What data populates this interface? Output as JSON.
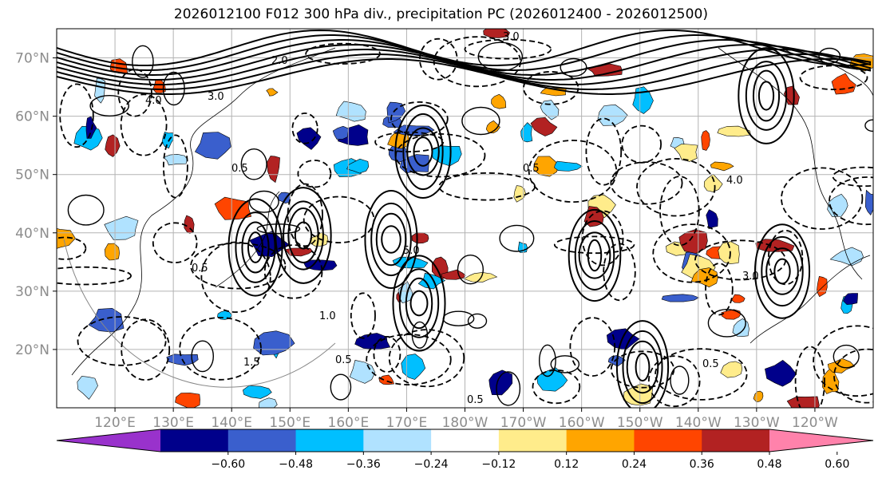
{
  "title": "2026012100 F012 300 hPa div., precipitation PC (2026012400 - 2026012500)",
  "map": {
    "lat_labels": [
      "70°N",
      "60°N",
      "50°N",
      "40°N",
      "30°N",
      "20°N"
    ],
    "lat_values": [
      70,
      60,
      50,
      40,
      30,
      20
    ],
    "lat_range": [
      10,
      75
    ],
    "lon_labels": [
      "120°E",
      "130°E",
      "140°E",
      "150°E",
      "160°E",
      "170°E",
      "180°W",
      "170°W",
      "160°W",
      "150°W",
      "140°W",
      "130°W",
      "120°W"
    ],
    "lon_range_east": [
      110,
      250
    ],
    "label_color": "#8c8c8c",
    "contour_labels": [
      "3.0",
      "4.0",
      "3.0",
      "0.5",
      "2.0",
      "5.0",
      "0.5",
      "1.5",
      "1.0",
      "0.5",
      "0.5",
      "3.0",
      "4.0",
      "0.5",
      "0.5"
    ]
  },
  "colorbar": {
    "colors": [
      "#9932cc",
      "#00008b",
      "#3a5fcd",
      "#00bfff",
      "#b0e2ff",
      "#ffffff",
      "#ffec8b",
      "#ffa500",
      "#ff4500",
      "#b22222",
      "#ff82ab"
    ],
    "tick_labels": [
      "−0.60",
      "−0.48",
      "−0.36",
      "−0.24",
      "−0.12",
      "0.12",
      "0.24",
      "0.36",
      "0.48",
      "0.60"
    ]
  }
}
